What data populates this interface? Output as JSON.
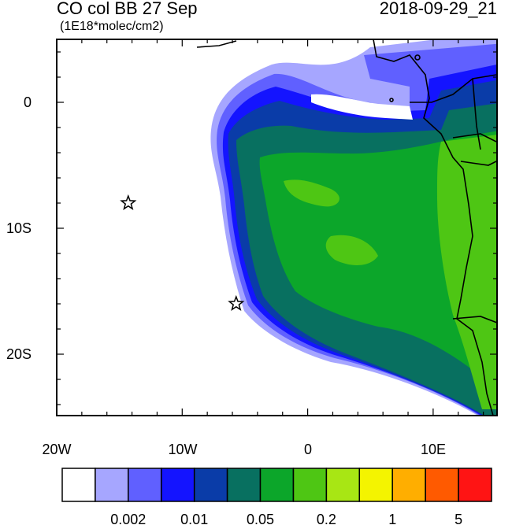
{
  "title": "CO col BB 27 Sep",
  "units": "(1E18*molec/cm2)",
  "valid_time": "2018-09-29_21",
  "x_ticks": [
    "20W",
    "10W",
    "0",
    "10E"
  ],
  "y_ticks": [
    "0",
    "10S",
    "20S"
  ],
  "colorbar": {
    "colors": [
      "#ffffff",
      "#a6a6ff",
      "#6060ff",
      "#1414ff",
      "#0a3ca8",
      "#087060",
      "#0ca62a",
      "#4ec614",
      "#a8e614",
      "#f4f400",
      "#ffae00",
      "#ff5a00",
      "#ff1414"
    ],
    "labels": [
      "0.002",
      "0.01",
      "0.05",
      "0.2",
      "1",
      "5"
    ]
  },
  "markers": [
    {
      "name": "star-marker-west",
      "lon": -14.3,
      "lat": -8.0
    },
    {
      "name": "star-marker-south",
      "lon": -5.7,
      "lat": -16.0
    }
  ]
}
